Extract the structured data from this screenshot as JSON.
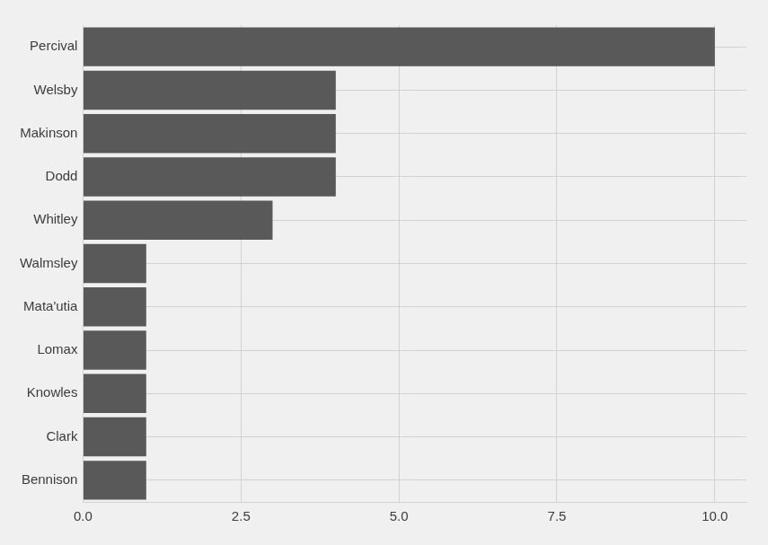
{
  "chart_data": {
    "type": "bar",
    "orientation": "horizontal",
    "categories": [
      "Percival",
      "Welsby",
      "Makinson",
      "Dodd",
      "Whitley",
      "Walmsley",
      "Mata'utia",
      "Lomax",
      "Knowles",
      "Clark",
      "Bennison"
    ],
    "values": [
      10,
      4,
      4,
      4,
      3,
      1,
      1,
      1,
      1,
      1,
      1
    ],
    "color": "#595959",
    "xlim": [
      0,
      10.5
    ],
    "xticks": [
      {
        "value": 0,
        "label": "0.0"
      },
      {
        "value": 2.5,
        "label": "2.5"
      },
      {
        "value": 5,
        "label": "5.0"
      },
      {
        "value": 7.5,
        "label": "7.5"
      },
      {
        "value": 10,
        "label": "10.0"
      }
    ],
    "grid": true
  }
}
